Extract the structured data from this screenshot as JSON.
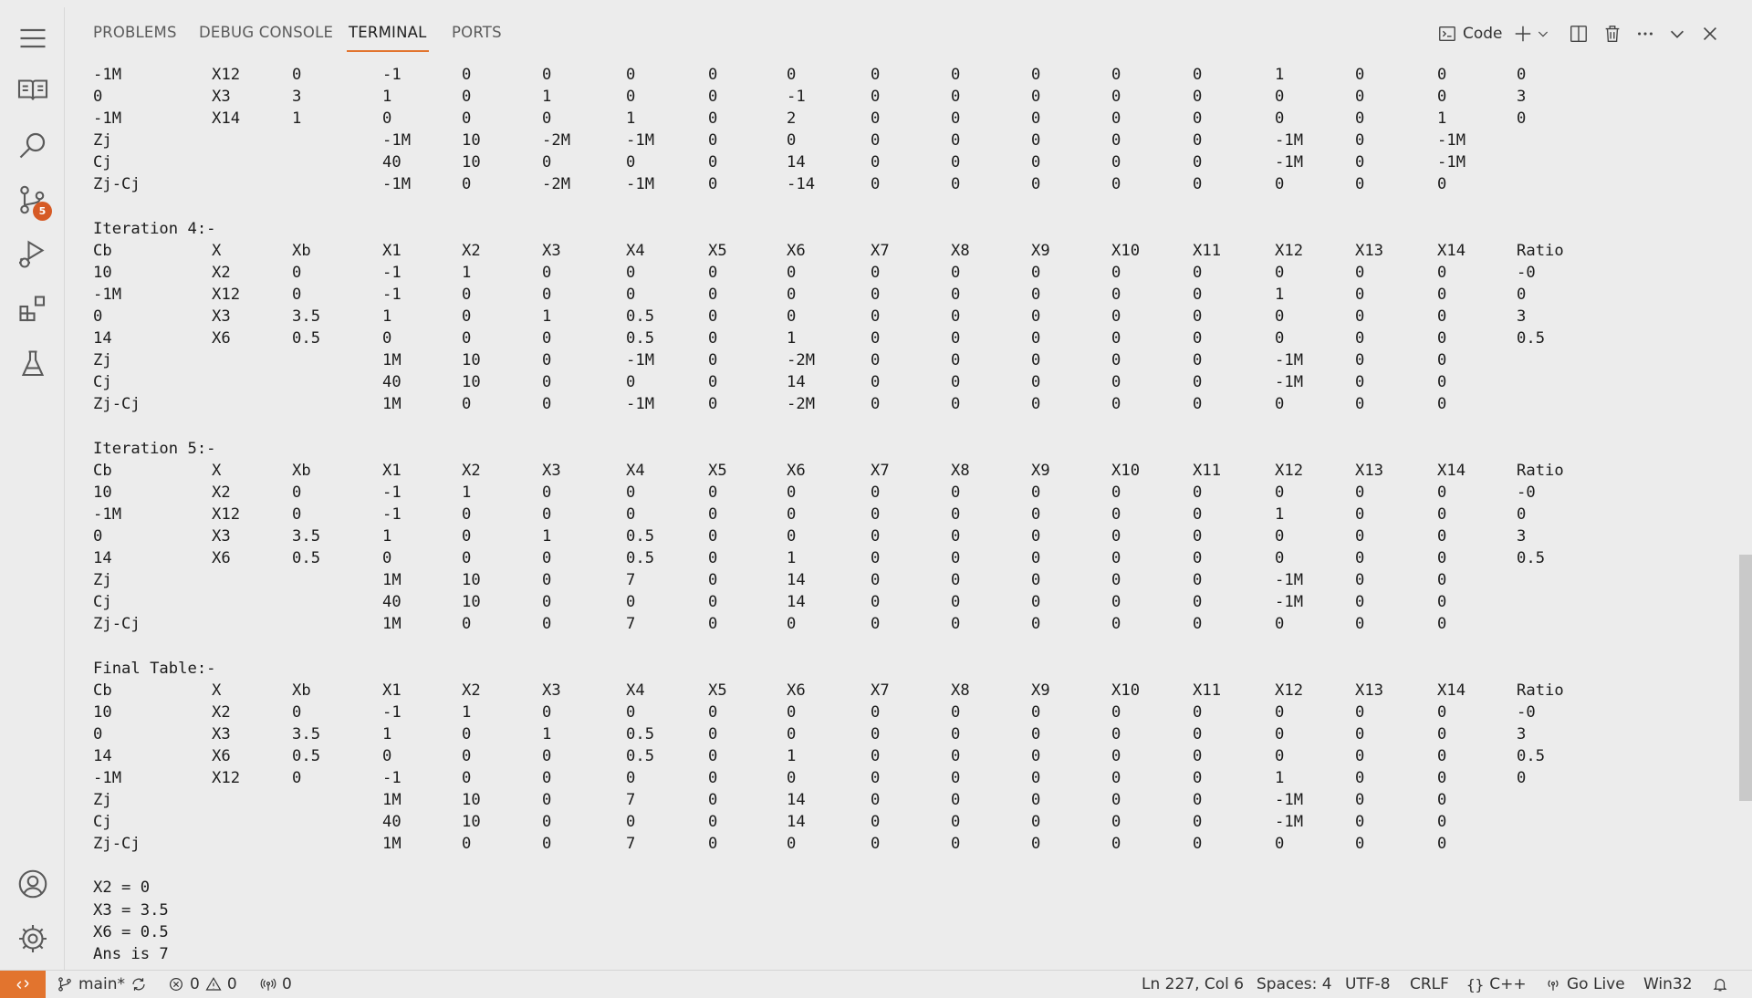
{
  "panel": {
    "tabs": [
      {
        "label": "PROBLEMS"
      },
      {
        "label": "DEBUG CONSOLE"
      },
      {
        "label": "TERMINAL"
      },
      {
        "label": "PORTS"
      }
    ],
    "terminal_profile": "Code"
  },
  "activity_bar": {
    "source_control_badge": "5"
  },
  "terminal": {
    "lines": [
      [
        "-1M",
        "X12",
        "0",
        "-1",
        "0",
        "0",
        "0",
        "0",
        "0",
        "0",
        "0",
        "0",
        "0",
        "0",
        "1",
        "0",
        "0",
        "0"
      ],
      [
        "0",
        "X3",
        "3",
        "1",
        "0",
        "1",
        "0",
        "0",
        "-1",
        "0",
        "0",
        "0",
        "0",
        "0",
        "0",
        "0",
        "0",
        "3"
      ],
      [
        "-1M",
        "X14",
        "1",
        "0",
        "0",
        "0",
        "1",
        "0",
        "2",
        "0",
        "0",
        "0",
        "0",
        "0",
        "0",
        "0",
        "1",
        "0"
      ],
      [
        "Zj",
        "",
        "",
        "-1M",
        "10",
        "-2M",
        "-1M",
        "0",
        "0",
        "0",
        "0",
        "0",
        "0",
        "0",
        "-1M",
        "0",
        "-1M",
        ""
      ],
      [
        "Cj",
        "",
        "",
        "40",
        "10",
        "0",
        "0",
        "0",
        "14",
        "0",
        "0",
        "0",
        "0",
        "0",
        "-1M",
        "0",
        "-1M",
        ""
      ],
      [
        "Zj-Cj",
        "",
        "",
        "-1M",
        "0",
        "-2M",
        "-1M",
        "0",
        "-14",
        "0",
        "0",
        "0",
        "0",
        "0",
        "0",
        "0",
        "0",
        ""
      ],
      [],
      [
        "Iteration 4:-"
      ],
      [
        "Cb",
        "X",
        "Xb",
        "X1",
        "X2",
        "X3",
        "X4",
        "X5",
        "X6",
        "X7",
        "X8",
        "X9",
        "X10",
        "X11",
        "X12",
        "X13",
        "X14",
        "Ratio"
      ],
      [
        "10",
        "X2",
        "0",
        "-1",
        "1",
        "0",
        "0",
        "0",
        "0",
        "0",
        "0",
        "0",
        "0",
        "0",
        "0",
        "0",
        "0",
        "-0"
      ],
      [
        "-1M",
        "X12",
        "0",
        "-1",
        "0",
        "0",
        "0",
        "0",
        "0",
        "0",
        "0",
        "0",
        "0",
        "0",
        "1",
        "0",
        "0",
        "0"
      ],
      [
        "0",
        "X3",
        "3.5",
        "1",
        "0",
        "1",
        "0.5",
        "0",
        "0",
        "0",
        "0",
        "0",
        "0",
        "0",
        "0",
        "0",
        "0",
        "3"
      ],
      [
        "14",
        "X6",
        "0.5",
        "0",
        "0",
        "0",
        "0.5",
        "0",
        "1",
        "0",
        "0",
        "0",
        "0",
        "0",
        "0",
        "0",
        "0",
        "0.5"
      ],
      [
        "Zj",
        "",
        "",
        "1M",
        "10",
        "0",
        "-1M",
        "0",
        "-2M",
        "0",
        "0",
        "0",
        "0",
        "0",
        "-1M",
        "0",
        "0",
        ""
      ],
      [
        "Cj",
        "",
        "",
        "40",
        "10",
        "0",
        "0",
        "0",
        "14",
        "0",
        "0",
        "0",
        "0",
        "0",
        "-1M",
        "0",
        "0",
        ""
      ],
      [
        "Zj-Cj",
        "",
        "",
        "1M",
        "0",
        "0",
        "-1M",
        "0",
        "-2M",
        "0",
        "0",
        "0",
        "0",
        "0",
        "0",
        "0",
        "0",
        ""
      ],
      [],
      [
        "Iteration 5:-"
      ],
      [
        "Cb",
        "X",
        "Xb",
        "X1",
        "X2",
        "X3",
        "X4",
        "X5",
        "X6",
        "X7",
        "X8",
        "X9",
        "X10",
        "X11",
        "X12",
        "X13",
        "X14",
        "Ratio"
      ],
      [
        "10",
        "X2",
        "0",
        "-1",
        "1",
        "0",
        "0",
        "0",
        "0",
        "0",
        "0",
        "0",
        "0",
        "0",
        "0",
        "0",
        "0",
        "-0"
      ],
      [
        "-1M",
        "X12",
        "0",
        "-1",
        "0",
        "0",
        "0",
        "0",
        "0",
        "0",
        "0",
        "0",
        "0",
        "0",
        "1",
        "0",
        "0",
        "0"
      ],
      [
        "0",
        "X3",
        "3.5",
        "1",
        "0",
        "1",
        "0.5",
        "0",
        "0",
        "0",
        "0",
        "0",
        "0",
        "0",
        "0",
        "0",
        "0",
        "3"
      ],
      [
        "14",
        "X6",
        "0.5",
        "0",
        "0",
        "0",
        "0.5",
        "0",
        "1",
        "0",
        "0",
        "0",
        "0",
        "0",
        "0",
        "0",
        "0",
        "0.5"
      ],
      [
        "Zj",
        "",
        "",
        "1M",
        "10",
        "0",
        "7",
        "0",
        "14",
        "0",
        "0",
        "0",
        "0",
        "0",
        "-1M",
        "0",
        "0",
        ""
      ],
      [
        "Cj",
        "",
        "",
        "40",
        "10",
        "0",
        "0",
        "0",
        "14",
        "0",
        "0",
        "0",
        "0",
        "0",
        "-1M",
        "0",
        "0",
        ""
      ],
      [
        "Zj-Cj",
        "",
        "",
        "1M",
        "0",
        "0",
        "7",
        "0",
        "0",
        "0",
        "0",
        "0",
        "0",
        "0",
        "0",
        "0",
        "0",
        ""
      ],
      [],
      [
        "Final Table:-"
      ],
      [
        "Cb",
        "X",
        "Xb",
        "X1",
        "X2",
        "X3",
        "X4",
        "X5",
        "X6",
        "X7",
        "X8",
        "X9",
        "X10",
        "X11",
        "X12",
        "X13",
        "X14",
        "Ratio"
      ],
      [
        "10",
        "X2",
        "0",
        "-1",
        "1",
        "0",
        "0",
        "0",
        "0",
        "0",
        "0",
        "0",
        "0",
        "0",
        "0",
        "0",
        "0",
        "-0"
      ],
      [
        "0",
        "X3",
        "3.5",
        "1",
        "0",
        "1",
        "0.5",
        "0",
        "0",
        "0",
        "0",
        "0",
        "0",
        "0",
        "0",
        "0",
        "0",
        "3"
      ],
      [
        "14",
        "X6",
        "0.5",
        "0",
        "0",
        "0",
        "0.5",
        "0",
        "1",
        "0",
        "0",
        "0",
        "0",
        "0",
        "0",
        "0",
        "0",
        "0.5"
      ],
      [
        "-1M",
        "X12",
        "0",
        "-1",
        "0",
        "0",
        "0",
        "0",
        "0",
        "0",
        "0",
        "0",
        "0",
        "0",
        "1",
        "0",
        "0",
        "0"
      ],
      [
        "Zj",
        "",
        "",
        "1M",
        "10",
        "0",
        "7",
        "0",
        "14",
        "0",
        "0",
        "0",
        "0",
        "0",
        "-1M",
        "0",
        "0",
        ""
      ],
      [
        "Cj",
        "",
        "",
        "40",
        "10",
        "0",
        "0",
        "0",
        "14",
        "0",
        "0",
        "0",
        "0",
        "0",
        "-1M",
        "0",
        "0",
        ""
      ],
      [
        "Zj-Cj",
        "",
        "",
        "1M",
        "0",
        "0",
        "7",
        "0",
        "0",
        "0",
        "0",
        "0",
        "0",
        "0",
        "0",
        "0",
        "0",
        ""
      ],
      [],
      [
        "X2 = 0"
      ],
      [
        "X3 = 3.5"
      ],
      [
        "X6 = 0.5"
      ],
      [
        "Ans is 7"
      ]
    ]
  },
  "statusbar": {
    "branch": "main*",
    "errors": "0",
    "warnings": "0",
    "ports": "0",
    "cursor": "Ln 227, Col 6",
    "spaces": "Spaces: 4",
    "encoding": "UTF-8",
    "eol": "CRLF",
    "language": "C++",
    "golive": "Go Live",
    "platform": "Win32"
  }
}
